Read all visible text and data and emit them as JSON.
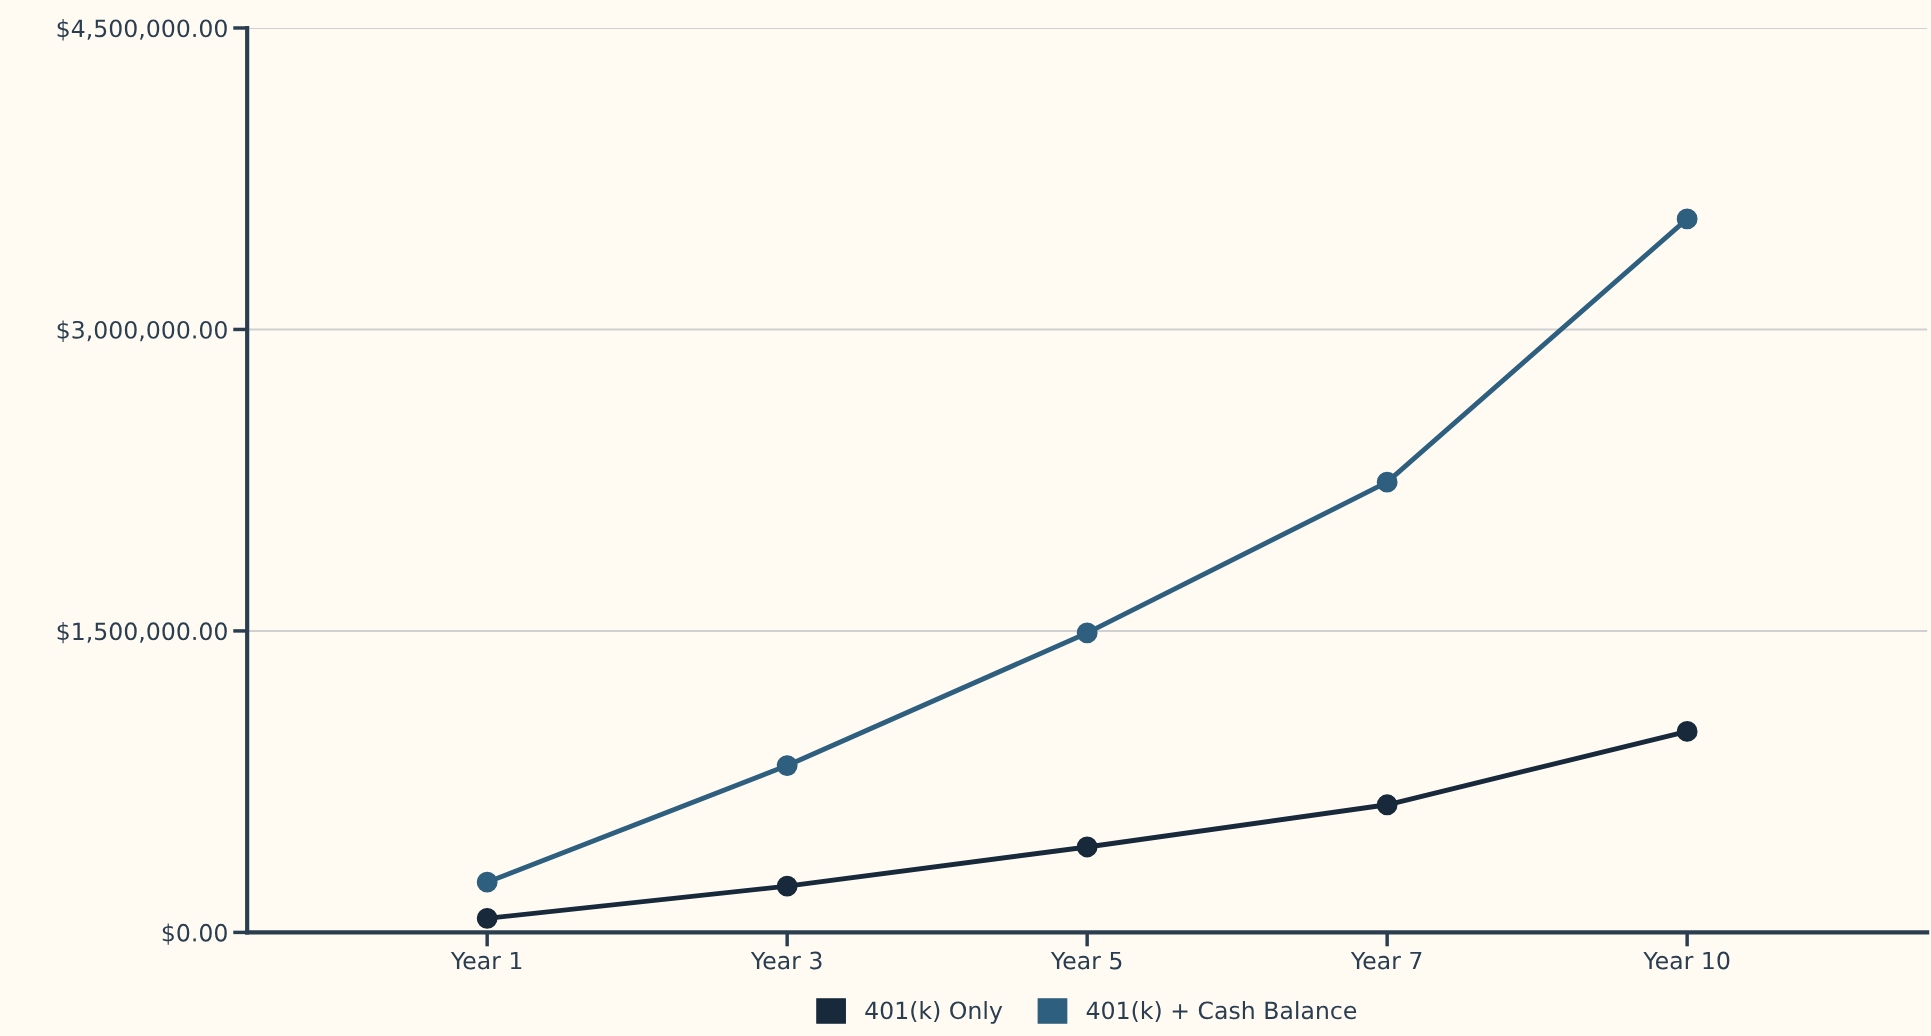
{
  "chart_data": {
    "type": "line",
    "categories": [
      "Year 1",
      "Year 3",
      "Year 5",
      "Year 7",
      "Year 10"
    ],
    "series": [
      {
        "name": "401(k) Only",
        "color": "#17293a",
        "values": [
          70000,
          230000,
          425000,
          635000,
          1000000
        ]
      },
      {
        "name": "401(k) + Cash Balance",
        "color": "#2e5f7f",
        "values": [
          250000,
          830000,
          1490000,
          2240000,
          3550000
        ]
      }
    ],
    "ylim": [
      0,
      4500000
    ],
    "yticks": [
      {
        "value": 0,
        "label": "$0.00"
      },
      {
        "value": 1500000,
        "label": "$1,500,000.00"
      },
      {
        "value": 3000000,
        "label": "$3,000,000.00"
      },
      {
        "value": 4500000,
        "label": "$4,500,000.00"
      }
    ],
    "grid": "y",
    "legend": "bottom",
    "marker": "circle",
    "line_style": "solid"
  }
}
